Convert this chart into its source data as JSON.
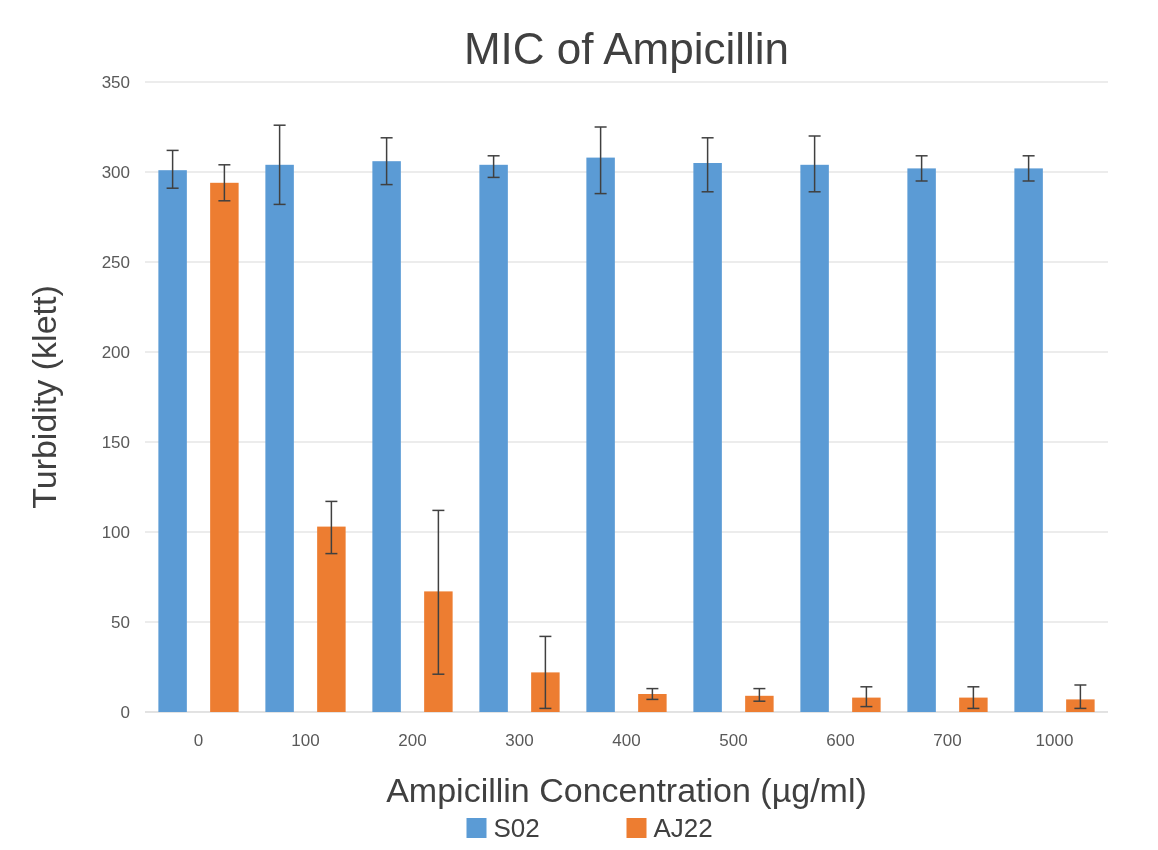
{
  "chart_data": {
    "type": "bar",
    "title": "MIC of Ampicillin",
    "xlabel": "Ampicillin Concentration (µg/ml)",
    "ylabel": "Turbidity (klett)",
    "categories": [
      "0",
      "100",
      "200",
      "300",
      "400",
      "500",
      "600",
      "700",
      "1000"
    ],
    "series": [
      {
        "name": "S02",
        "color": "#5b9bd5",
        "values": [
          301,
          304,
          306,
          304,
          308,
          305,
          304,
          302,
          302
        ],
        "errors": [
          [
            291,
            312
          ],
          [
            282,
            326
          ],
          [
            293,
            319
          ],
          [
            297,
            309
          ],
          [
            288,
            325
          ],
          [
            289,
            319
          ],
          [
            289,
            320
          ],
          [
            295,
            309
          ],
          [
            295,
            309
          ]
        ]
      },
      {
        "name": "AJ22",
        "color": "#ed7d31",
        "values": [
          294,
          103,
          67,
          22,
          10,
          9,
          8,
          8,
          7
        ],
        "errors": [
          [
            284,
            304
          ],
          [
            88,
            117
          ],
          [
            21,
            112
          ],
          [
            2,
            42
          ],
          [
            7,
            13
          ],
          [
            6,
            13
          ],
          [
            3,
            14
          ],
          [
            2,
            14
          ],
          [
            2,
            15
          ]
        ]
      }
    ],
    "ylim": [
      0,
      350
    ],
    "yticks": [
      0,
      50,
      100,
      150,
      200,
      250,
      300,
      350
    ],
    "grid": "y",
    "legend": "bottom"
  }
}
